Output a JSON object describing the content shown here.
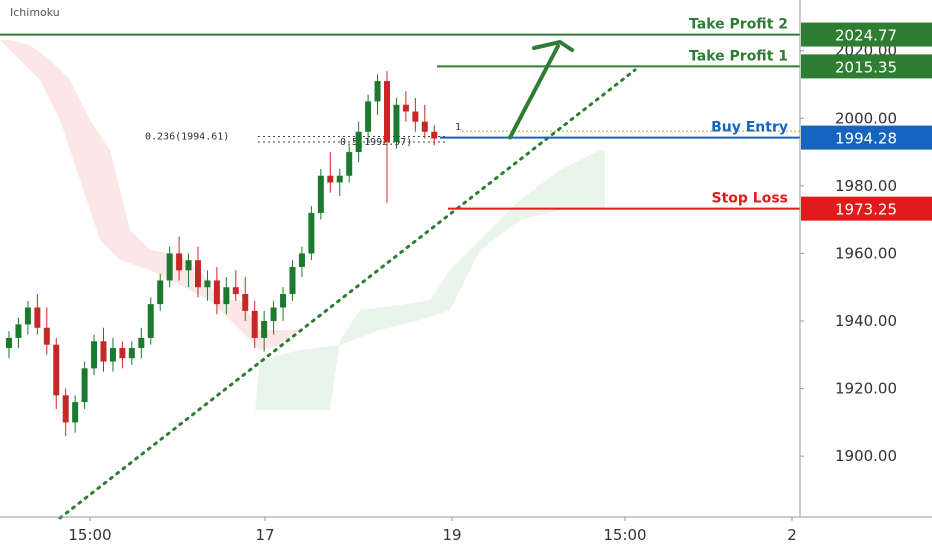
{
  "indicator_label": "Ichimoku",
  "colors": {
    "up": "#1b7a2e",
    "down": "#c62828",
    "tp": "#2e7d32",
    "sl": "#e01b1b",
    "entry": "#1565c0",
    "cloud_bull": "#4caf50",
    "cloud_bear": "#ef5350"
  },
  "chart_data": {
    "type": "candlestick",
    "ylim": [
      1882,
      2035
    ],
    "y_ticks": [
      "1900.00",
      "1920.00",
      "1940.00",
      "1960.00",
      "1980.00",
      "2000.00",
      "2020.00"
    ],
    "x_ticks": [
      "15:00",
      "17",
      "19",
      "15:00",
      "2"
    ],
    "levels": [
      {
        "key": "tp2",
        "label": "Take Profit 2",
        "value": "2024.77"
      },
      {
        "key": "tp1",
        "label": "Take Profit 1",
        "value": "2015.35"
      },
      {
        "key": "entry",
        "label": "Buy Entry",
        "value": "1994.28"
      },
      {
        "key": "sl",
        "label": "Stop Loss",
        "value": "1973.25"
      }
    ],
    "fib_labels": [
      {
        "text": "0.236(1994.61)",
        "value": 1994.61
      },
      {
        "text": "0.5(1992.97)",
        "value": 1992.97
      }
    ],
    "fib_marker": "1",
    "candles": [
      [
        1932,
        1937,
        1929,
        1935
      ],
      [
        1935,
        1941,
        1932,
        1939
      ],
      [
        1939,
        1946,
        1936,
        1944
      ],
      [
        1944,
        1948,
        1936,
        1938
      ],
      [
        1938,
        1944,
        1930,
        1933
      ],
      [
        1933,
        1935,
        1914,
        1918
      ],
      [
        1918,
        1920,
        1906,
        1910
      ],
      [
        1910,
        1918,
        1907,
        1916
      ],
      [
        1916,
        1928,
        1914,
        1926
      ],
      [
        1926,
        1936,
        1924,
        1934
      ],
      [
        1934,
        1938,
        1925,
        1928
      ],
      [
        1928,
        1935,
        1925,
        1932
      ],
      [
        1932,
        1934,
        1926,
        1929
      ],
      [
        1929,
        1934,
        1927,
        1932
      ],
      [
        1932,
        1938,
        1929,
        1935
      ],
      [
        1935,
        1947,
        1933,
        1945
      ],
      [
        1945,
        1954,
        1943,
        1952
      ],
      [
        1952,
        1962,
        1950,
        1960
      ],
      [
        1960,
        1965,
        1952,
        1955
      ],
      [
        1955,
        1960,
        1950,
        1958
      ],
      [
        1958,
        1962,
        1947,
        1950
      ],
      [
        1950,
        1955,
        1946,
        1952
      ],
      [
        1952,
        1956,
        1942,
        1945
      ],
      [
        1945,
        1953,
        1942,
        1950
      ],
      [
        1950,
        1955,
        1946,
        1948
      ],
      [
        1948,
        1953,
        1940,
        1943
      ],
      [
        1943,
        1946,
        1932,
        1935
      ],
      [
        1935,
        1943,
        1931,
        1940
      ],
      [
        1940,
        1946,
        1936,
        1944
      ],
      [
        1944,
        1950,
        1940,
        1948
      ],
      [
        1948,
        1958,
        1946,
        1956
      ],
      [
        1956,
        1962,
        1953,
        1960
      ],
      [
        1960,
        1974,
        1958,
        1972
      ],
      [
        1972,
        1985,
        1970,
        1983
      ],
      [
        1983,
        1990,
        1978,
        1981
      ],
      [
        1981,
        1985,
        1977,
        1983
      ],
      [
        1983,
        1992,
        1981,
        1990
      ],
      [
        1990,
        1999,
        1987,
        1996
      ],
      [
        1996,
        2007,
        1993,
        2005
      ],
      [
        2005,
        2013,
        2001,
        2011
      ],
      [
        2011,
        2014,
        1975,
        1993
      ],
      [
        1993,
        2006,
        1991,
        2004
      ],
      [
        2004,
        2008,
        1999,
        2002
      ],
      [
        2002,
        2006,
        1996,
        1999
      ],
      [
        1999,
        2004,
        1994,
        1996
      ],
      [
        1996,
        1998,
        1992,
        1994
      ]
    ]
  }
}
